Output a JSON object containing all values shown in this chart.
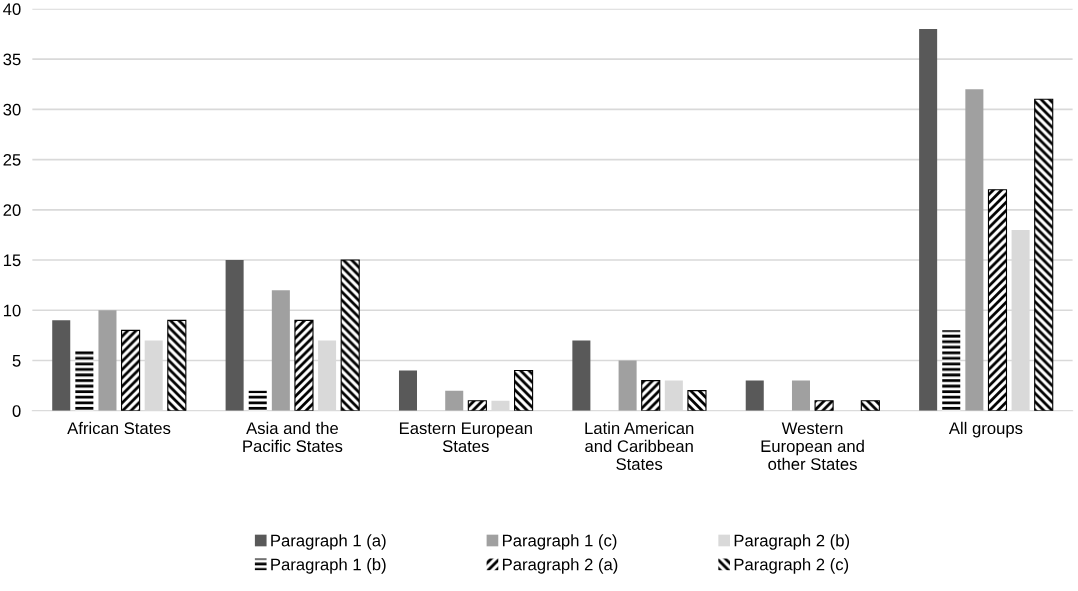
{
  "chart_data": {
    "type": "bar",
    "categories": [
      "African States",
      "Asia and the\nPacific States",
      "Eastern European\nStates",
      "Latin American\nand Caribbean\nStates",
      "Western\nEuropean and\nother States",
      "All groups"
    ],
    "series": [
      {
        "name": "Paragraph 1 (a)",
        "color": "#595959",
        "values": [
          9,
          15,
          4,
          7,
          3,
          38
        ]
      },
      {
        "name": "Paragraph 1 (b)",
        "color": "#000000",
        "values": [
          6,
          2,
          0,
          0,
          0,
          8
        ]
      },
      {
        "name": "Paragraph 1 (c)",
        "color": "#a0a0a0",
        "values": [
          10,
          12,
          2,
          5,
          3,
          32
        ]
      },
      {
        "name": "Paragraph 2 (a)",
        "color": "#000000",
        "values": [
          8,
          9,
          1,
          3,
          1,
          22
        ]
      },
      {
        "name": "Paragraph 2 (b)",
        "color": "#d9d9d9",
        "values": [
          7,
          7,
          1,
          3,
          0,
          18
        ]
      },
      {
        "name": "Paragraph 2 (c)",
        "color": "#000000",
        "values": [
          9,
          15,
          4,
          2,
          1,
          31
        ]
      }
    ],
    "ylim": [
      0,
      40
    ],
    "yticks": [
      0,
      5,
      10,
      15,
      20,
      25,
      30,
      35,
      40
    ],
    "grid": "y",
    "legend": "bottom"
  }
}
